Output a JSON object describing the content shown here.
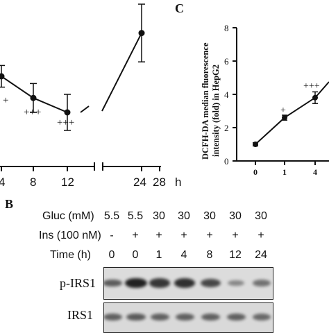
{
  "panel_c": {
    "letter": "C",
    "ylabel_line1": "DCFH-DA median fluorescence",
    "ylabel_line2": "intensity (fold) in HepG2",
    "yticks": [
      "0",
      "2",
      "4",
      "6",
      "8"
    ],
    "xticks": [
      "0",
      "1",
      "4"
    ],
    "annotations": [
      "+",
      "+++"
    ]
  },
  "panel_a": {
    "xticks": [
      "4",
      "8",
      "12",
      "24",
      "28"
    ],
    "x_unit": "h",
    "annotations": [
      "+",
      "+++",
      "+++"
    ]
  },
  "panel_b": {
    "letter": "B",
    "rows": [
      {
        "label": "Gluc (mM)",
        "values": [
          "5.5",
          "5.5",
          "30",
          "30",
          "30",
          "30",
          "30"
        ]
      },
      {
        "label": "Ins (100 nM)",
        "values": [
          "-",
          "+",
          "+",
          "+",
          "+",
          "+",
          "+"
        ]
      },
      {
        "label": "Time (h)",
        "values": [
          "0",
          "0",
          "1",
          "4",
          "8",
          "12",
          "24"
        ]
      }
    ],
    "blots": [
      {
        "label": "p-IRS1",
        "intensities": [
          0.55,
          0.95,
          0.8,
          0.85,
          0.7,
          0.25,
          0.4
        ]
      },
      {
        "label": "IRS1",
        "intensities": [
          0.5,
          0.55,
          0.5,
          0.5,
          0.5,
          0.5,
          0.45
        ]
      }
    ]
  },
  "chart_data": [
    {
      "type": "line",
      "x": [
        4,
        8,
        12,
        24
      ],
      "values": [
        3.0,
        2.4,
        2.0,
        4.2
      ],
      "error": [
        0.3,
        0.4,
        0.5,
        0.8
      ],
      "xlabel": "h",
      "ylabel": "",
      "annotations": [
        "+",
        "+++",
        "+++"
      ]
    },
    {
      "type": "line",
      "x": [
        0,
        1,
        4
      ],
      "values": [
        1.0,
        2.6,
        3.8
      ],
      "error": [
        0.1,
        0.15,
        0.35
      ],
      "xlabel": "",
      "ylabel": "DCFH-DA median fluorescence intensity (fold) in HepG2",
      "ylim": [
        0,
        8
      ],
      "annotations": [
        "+",
        "+++"
      ]
    }
  ]
}
